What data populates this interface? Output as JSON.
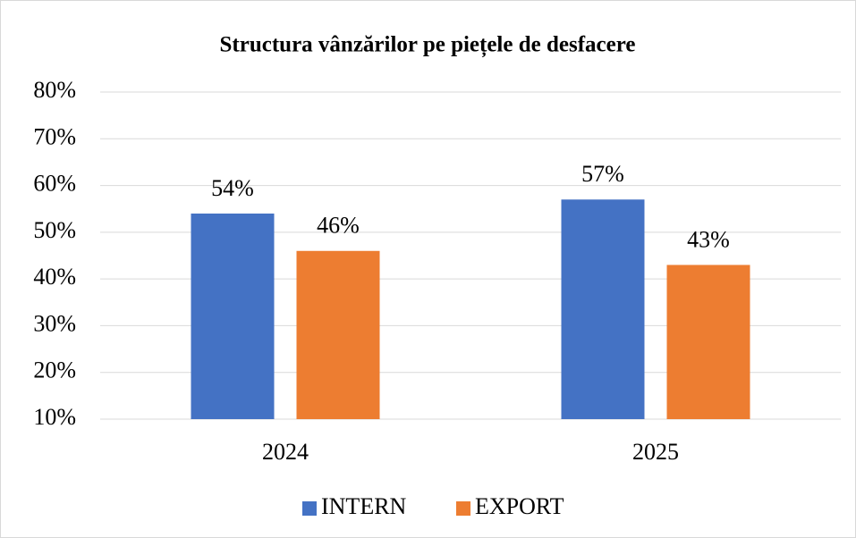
{
  "chart_data": {
    "type": "bar",
    "title": "Structura vânzărilor pe piețele de desfacere",
    "categories": [
      "2024",
      "2025"
    ],
    "series": [
      {
        "name": "INTERN",
        "color": "#4472c4",
        "values": [
          54,
          57
        ],
        "value_labels": [
          "54%",
          "57%"
        ]
      },
      {
        "name": "EXPORT",
        "color": "#ed7d31",
        "values": [
          46,
          43
        ],
        "value_labels": [
          "46%",
          "43%"
        ]
      }
    ],
    "ylim": [
      10,
      80
    ],
    "yticks": [
      {
        "value": 10,
        "label": "10%"
      },
      {
        "value": 20,
        "label": "20%"
      },
      {
        "value": 30,
        "label": "30%"
      },
      {
        "value": 40,
        "label": "40%"
      },
      {
        "value": 50,
        "label": "50%"
      },
      {
        "value": 60,
        "label": "60%"
      },
      {
        "value": 70,
        "label": "70%"
      },
      {
        "value": 80,
        "label": "80%"
      }
    ],
    "grid": true,
    "legend": "bottom"
  }
}
